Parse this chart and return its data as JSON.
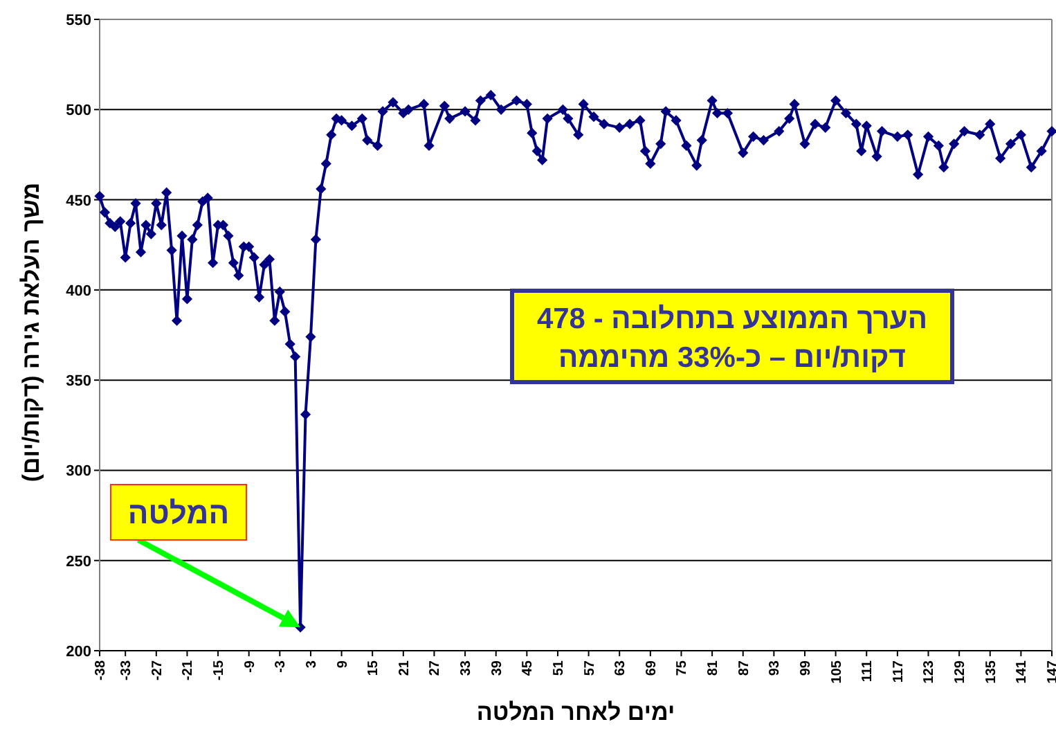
{
  "chart_data": {
    "type": "line",
    "xlabel": "ימים לאחר המלטה",
    "ylabel": "משך העלאת גירה (דקות/יום)",
    "x": [
      -38,
      -37,
      -36,
      -35,
      -34,
      -33,
      -32,
      -31,
      -30,
      -29,
      -28,
      -27,
      -26,
      -25,
      -24,
      -23,
      -22,
      -21,
      -20,
      -19,
      -18,
      -17,
      -16,
      -15,
      -14,
      -13,
      -12,
      -11,
      -10,
      -9,
      -8,
      -7,
      -6,
      -5,
      -4,
      -3,
      -2,
      -1,
      0,
      1,
      2,
      3,
      4,
      5,
      6,
      7,
      8,
      9,
      11,
      13,
      14,
      16,
      17,
      19,
      21,
      22,
      25,
      26,
      29,
      30,
      33,
      35,
      36,
      38,
      40,
      43,
      45,
      46,
      47,
      48,
      49,
      52,
      53,
      55,
      56,
      58,
      60,
      63,
      65,
      67,
      68,
      69,
      71,
      72,
      74,
      76,
      78,
      79,
      81,
      82,
      84,
      87,
      89,
      91,
      94,
      96,
      97,
      99,
      101,
      103,
      105,
      107,
      109,
      110,
      111,
      113,
      114,
      117,
      119,
      121,
      123,
      125,
      126,
      128,
      130,
      133,
      135,
      137,
      139,
      141,
      143,
      145,
      147
    ],
    "series": [
      {
        "color": "#000080",
        "values": [
          452,
          443,
          437,
          435,
          438,
          418,
          437,
          448,
          421,
          436,
          431,
          448,
          436,
          454,
          422,
          383,
          430,
          395,
          428,
          436,
          449,
          451,
          415,
          436,
          436,
          430,
          415,
          408,
          424,
          424,
          418,
          396,
          414,
          417,
          383,
          399,
          388,
          370,
          363,
          213,
          331,
          374,
          428,
          456,
          470,
          486,
          495,
          494,
          491,
          495,
          483,
          480,
          499,
          504,
          498,
          500,
          503,
          480,
          502,
          495,
          499,
          494,
          505,
          508,
          500,
          505,
          503,
          487,
          477,
          472,
          495,
          500,
          495,
          486,
          503,
          496,
          492,
          490,
          492,
          494,
          477,
          470,
          481,
          499,
          494,
          480,
          469,
          483,
          505,
          498,
          498,
          476,
          485,
          483,
          488,
          495,
          503,
          481,
          492,
          490,
          505,
          498,
          492,
          477,
          491,
          474,
          488,
          485,
          486,
          464,
          485,
          480,
          468,
          481,
          488,
          486,
          492,
          473,
          481,
          486,
          468,
          477,
          488
        ]
      }
    ],
    "xlim": [
      -38,
      147
    ],
    "xticks": [
      -38,
      -33,
      -27,
      -21,
      -15,
      -9,
      -3,
      3,
      9,
      15,
      21,
      27,
      33,
      39,
      45,
      51,
      57,
      63,
      69,
      75,
      81,
      87,
      93,
      99,
      105,
      111,
      117,
      123,
      129,
      135,
      141,
      147
    ],
    "ylim": [
      200,
      550
    ],
    "yticks": [
      200,
      250,
      300,
      350,
      400,
      450,
      500,
      550
    ],
    "grid": "y",
    "marker": "diamond",
    "line_style": "solid",
    "annotations": [
      "הערך הממוצע בתחלובה - 478",
      "דקות/יום – כ-33% מהיממה",
      "המלטה"
    ]
  }
}
